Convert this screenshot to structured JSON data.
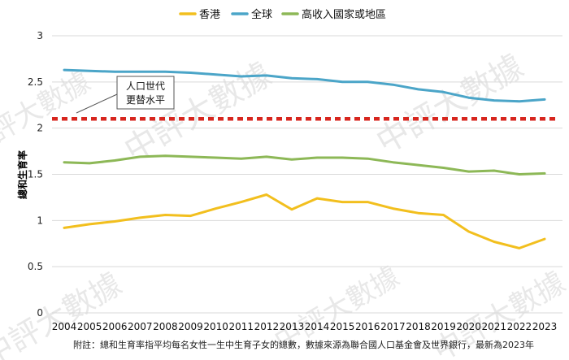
{
  "chart_data": {
    "type": "line",
    "x": [
      "2004",
      "2005",
      "2006",
      "2007",
      "2008",
      "2009",
      "2010",
      "2011",
      "2012",
      "2013",
      "2014",
      "2015",
      "2016",
      "2017",
      "2018",
      "2019",
      "2020",
      "2021",
      "2022",
      "2023"
    ],
    "ylabel": "總和生育率",
    "ylim": [
      0,
      3
    ],
    "yticks": [
      "0",
      "0.5",
      "1",
      "1.5",
      "2",
      "2.5",
      "3"
    ],
    "grid": true,
    "legend_position": "top",
    "series": [
      {
        "name": "香港",
        "color": "#F2BF1E",
        "values": [
          0.92,
          0.96,
          0.99,
          1.03,
          1.06,
          1.05,
          1.13,
          1.2,
          1.28,
          1.12,
          1.24,
          1.2,
          1.2,
          1.13,
          1.08,
          1.06,
          0.88,
          0.77,
          0.7,
          0.8
        ]
      },
      {
        "name": "全球",
        "color": "#4BA5C8",
        "values": [
          2.63,
          2.62,
          2.61,
          2.61,
          2.61,
          2.6,
          2.58,
          2.56,
          2.57,
          2.54,
          2.53,
          2.5,
          2.5,
          2.47,
          2.42,
          2.39,
          2.33,
          2.3,
          2.29,
          2.31
        ]
      },
      {
        "name": "高收入國家或地區",
        "color": "#8DB857",
        "values": [
          1.63,
          1.62,
          1.65,
          1.69,
          1.7,
          1.69,
          1.68,
          1.67,
          1.69,
          1.66,
          1.68,
          1.68,
          1.67,
          1.63,
          1.6,
          1.57,
          1.53,
          1.54,
          1.5,
          1.51
        ]
      }
    ],
    "reference_line": {
      "value": 2.1,
      "color": "#D7261E",
      "label_lines": [
        "人口世代",
        "更替水平"
      ]
    },
    "note": "附註：總和生育率指平均每名女性一生中生育子女的總數，數據來源為聯合國人口基金會及世界銀行，最新為2023年",
    "watermark": "中評大數據"
  }
}
